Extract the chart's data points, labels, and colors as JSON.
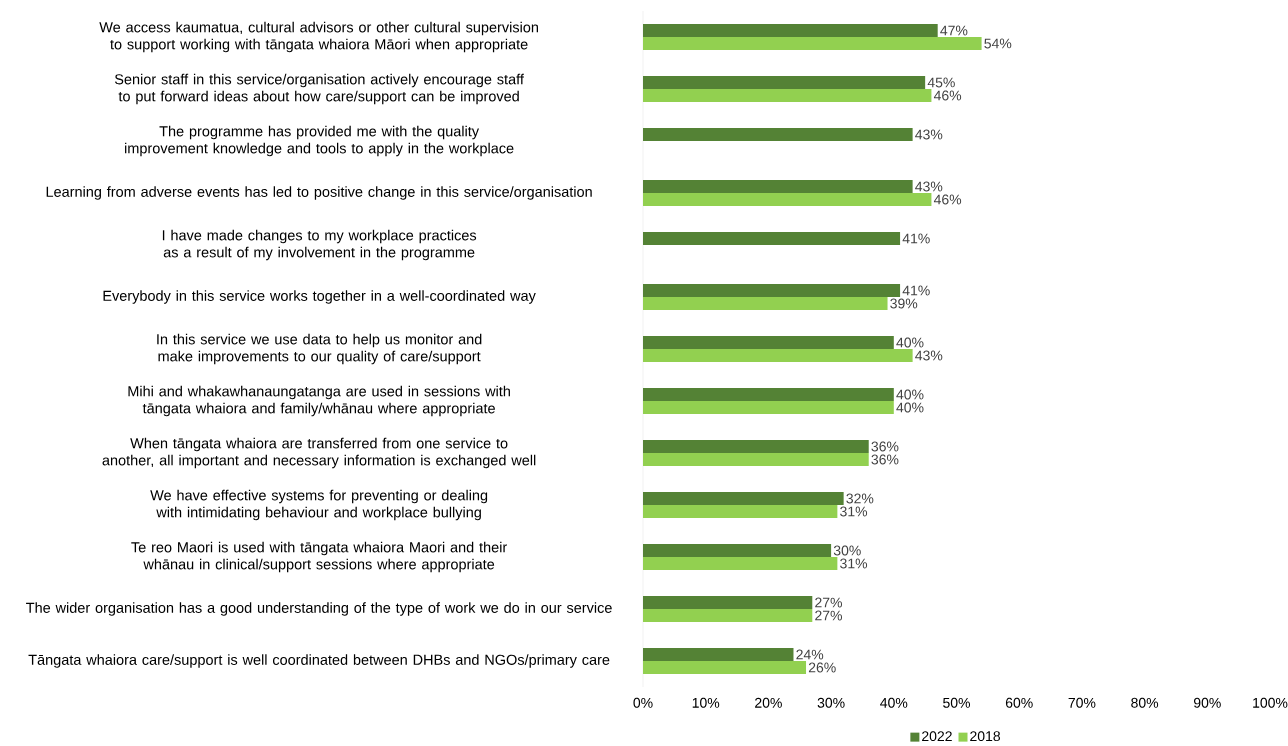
{
  "chart_data": {
    "type": "bar",
    "orientation": "horizontal",
    "categories": [
      "We access kaumatua, cultural advisors or other cultural supervision to support working with tāngata whaiora Māori when appropriate",
      "Senior staff in this service/organisation actively encourage staff to put forward ideas about how care/support can be improved",
      "The programme has provided me with the quality improvement knowledge and tools to apply in the workplace",
      "Learning from adverse events has led to positive change in this service/organisation",
      "I have made changes to my workplace practices as a result of my involvement in the programme",
      "Everybody in this service works together in a well-coordinated way",
      "In this service we use data to help us monitor and make improvements to our quality of care/support",
      "Mihi and whakawhanaungatanga are used in sessions with tāngata whaiora and family/whānau where appropriate",
      "When tāngata whaiora are transferred from one service to another, all important and necessary information is exchanged well",
      "We have effective systems for preventing or dealing with intimidating behaviour and workplace bullying",
      "Te reo Maori is used with tāngata whaiora Maori and their whānau in clinical/support sessions where appropriate",
      "The wider organisation has a good understanding of the type of work we do in our service",
      "Tāngata whaiora care/support is well coordinated between DHBs and NGOs/primary care"
    ],
    "series": [
      {
        "name": "2022",
        "color": "#548235",
        "values": [
          47,
          45,
          43,
          43,
          41,
          41,
          40,
          40,
          36,
          32,
          30,
          27,
          24
        ],
        "value_labels": [
          "47%",
          "45%",
          "43%",
          "43%",
          "41%",
          "41%",
          "40%",
          "40%",
          "36%",
          "32%",
          "30%",
          "27%",
          "24%"
        ]
      },
      {
        "name": "2018",
        "color": "#92d050",
        "values": [
          54,
          46,
          null,
          46,
          null,
          39,
          43,
          40,
          36,
          31,
          31,
          27,
          26
        ],
        "value_labels": [
          "54%",
          "46%",
          null,
          "46%",
          null,
          "39%",
          "43%",
          "40%",
          "36%",
          "31%",
          "31%",
          "27%",
          "26%"
        ]
      }
    ],
    "xlim": [
      0,
      100
    ],
    "xticks": [
      {
        "value": 0,
        "label": "0%"
      },
      {
        "value": 10,
        "label": "10%"
      },
      {
        "value": 20,
        "label": "20%"
      },
      {
        "value": 30,
        "label": "30%"
      },
      {
        "value": 40,
        "label": "40%"
      },
      {
        "value": 50,
        "label": "50%"
      },
      {
        "value": 60,
        "label": "60%"
      },
      {
        "value": 70,
        "label": "70%"
      },
      {
        "value": 80,
        "label": "80%"
      },
      {
        "value": 90,
        "label": "90%"
      },
      {
        "value": 100,
        "label": "100%"
      }
    ],
    "legend": "bottom"
  }
}
